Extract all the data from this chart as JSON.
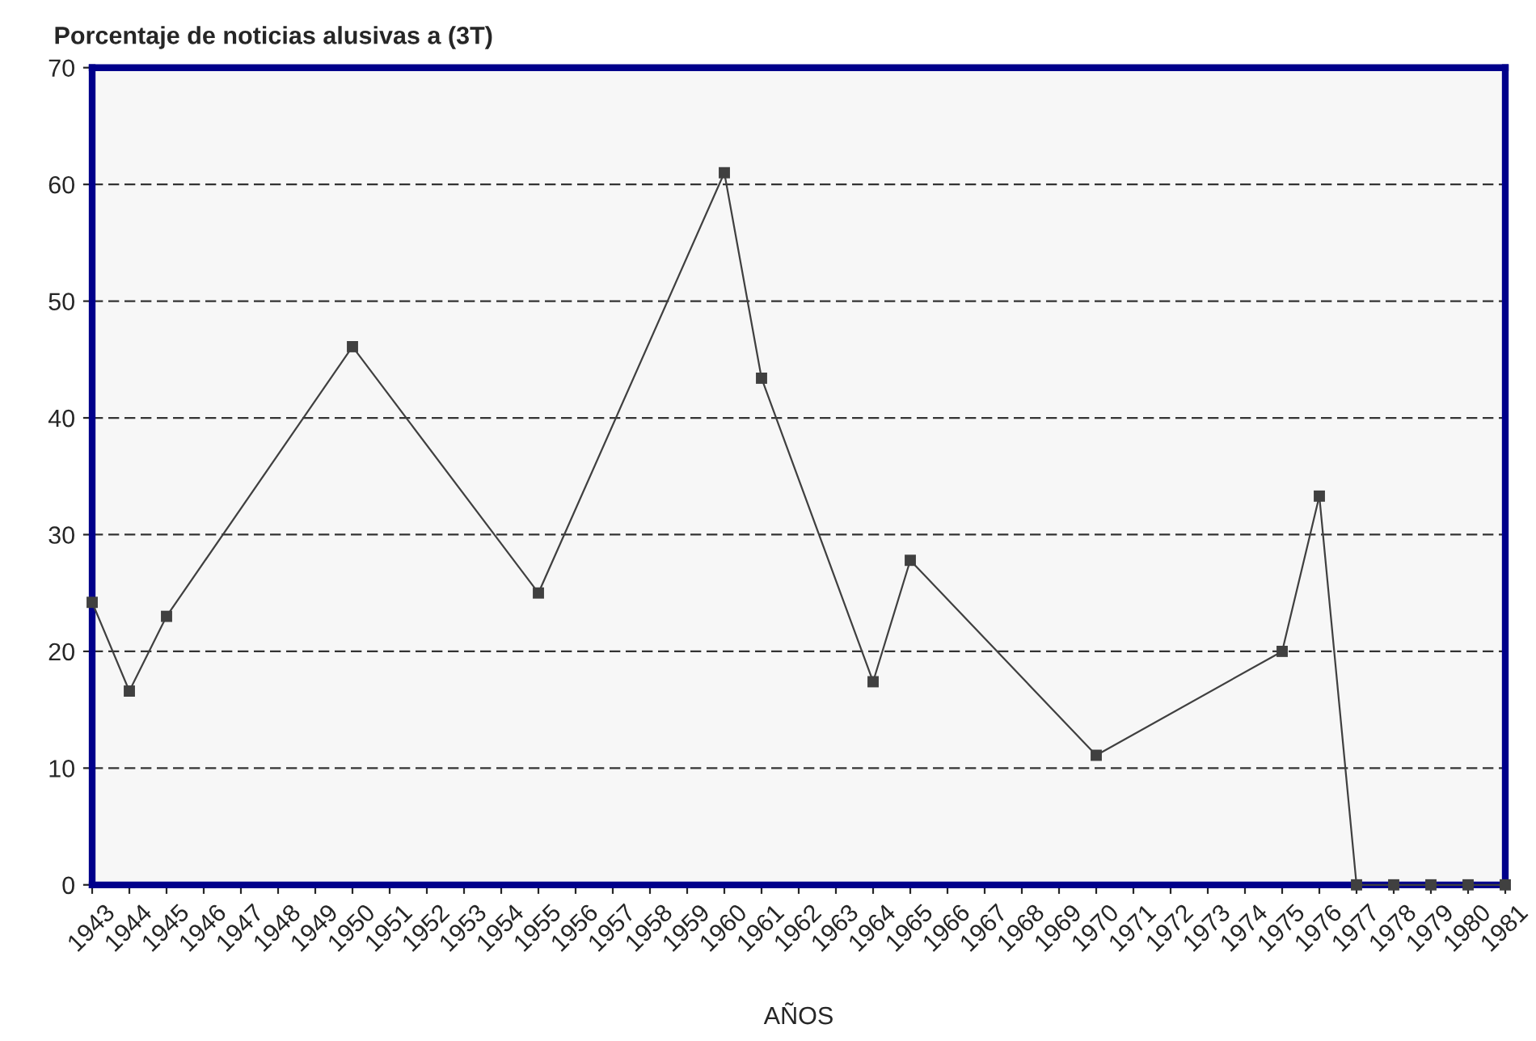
{
  "chart_data": {
    "type": "line",
    "title": "Porcentaje de noticias alusivas a (3T)",
    "xlabel": "AÑOS",
    "x": [
      1943,
      1944,
      1945,
      1950,
      1955,
      1960,
      1961,
      1964,
      1965,
      1970,
      1975,
      1976,
      1977,
      1978,
      1979,
      1980,
      1981
    ],
    "series": [
      {
        "color": "#404040",
        "values": [
          24.2,
          16.6,
          23,
          46.1,
          25,
          61,
          43.4,
          17.4,
          27.8,
          11.1,
          20,
          33.3,
          0,
          0,
          0,
          0,
          0
        ]
      }
    ],
    "xlim": [
      1943,
      1981
    ],
    "xticks": [
      1943,
      1944,
      1945,
      1946,
      1947,
      1948,
      1949,
      1950,
      1951,
      1952,
      1953,
      1954,
      1955,
      1956,
      1957,
      1958,
      1959,
      1960,
      1961,
      1962,
      1963,
      1964,
      1965,
      1966,
      1967,
      1968,
      1969,
      1970,
      1971,
      1972,
      1973,
      1974,
      1975,
      1976,
      1977,
      1978,
      1979,
      1980,
      1981
    ],
    "ylim": [
      0,
      70
    ],
    "yticks": [
      0,
      10,
      20,
      30,
      40,
      50,
      60,
      70
    ],
    "grid": "y",
    "marker": "square",
    "line_style": "solid",
    "legend": false
  }
}
